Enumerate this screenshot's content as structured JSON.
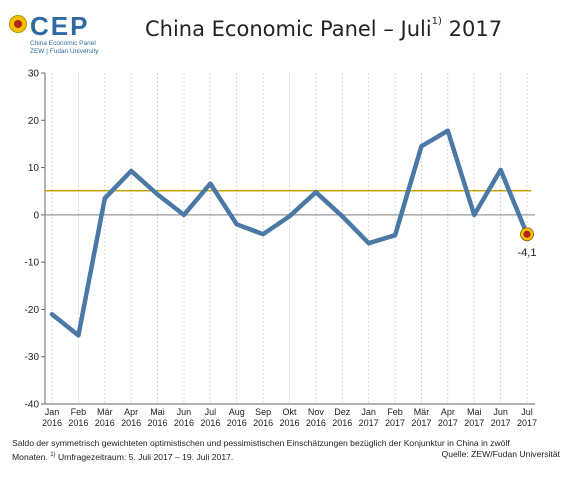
{
  "header": {
    "logo_text": "CEP",
    "logo_line1": "China Economic Panel",
    "logo_line2": "ZEW | Fudan University",
    "title_main": "China Economic Panel – Juli",
    "title_sup": "1)",
    "title_year": " 2017"
  },
  "colors": {
    "series": "#4a79a5",
    "reference_line": "#c8a415",
    "zero_line": "#999999",
    "marker_fill": "#b3261e",
    "marker_ring": "#f2c200"
  },
  "chart_data": {
    "type": "line",
    "x_month_labels": [
      "Jan",
      "Feb",
      "Mär",
      "Apr",
      "Mai",
      "Jun",
      "Jul",
      "Aug",
      "Sep",
      "Okt",
      "Nov",
      "Dez",
      "Jan",
      "Feb",
      "Mär",
      "Apr",
      "Mai",
      "Jun",
      "Jul"
    ],
    "x_year_labels": [
      "2016",
      "2016",
      "2016",
      "2016",
      "2016",
      "2016",
      "2016",
      "2016",
      "2016",
      "2016",
      "2016",
      "2016",
      "2017",
      "2017",
      "2017",
      "2017",
      "2017",
      "2017",
      "2017"
    ],
    "values": [
      -21,
      -25.5,
      3.5,
      9.3,
      4.3,
      0,
      6.6,
      -2,
      -4.1,
      -0.3,
      4.8,
      -0.3,
      -6,
      -4.3,
      14.5,
      17.8,
      0,
      9.5,
      -4.1
    ],
    "reference_value": 5.1,
    "ylim": [
      -40,
      30
    ],
    "yticks": [
      -40,
      -30,
      -20,
      -10,
      0,
      10,
      20,
      30
    ],
    "ytick_labels": [
      "-40",
      "-30",
      "-20",
      "-10",
      "0",
      "10",
      "20",
      "30"
    ],
    "last_value_label": "-4,1",
    "grid": "vertical dotted"
  },
  "footer": {
    "note_line1": "Saldo der symmetrisch gewichteten optimistischen und pessimistischen Einschätzungen bezüglich der Konjunktur in China in zwölf",
    "note_line2_a": "Monaten. ",
    "note_line2_sup": "1)",
    "note_line2_b": " Umfragezeitraum: 5. Juli 2017 – 19. Juli 2017.",
    "source": "Quelle: ZEW/Fudan Universität"
  }
}
